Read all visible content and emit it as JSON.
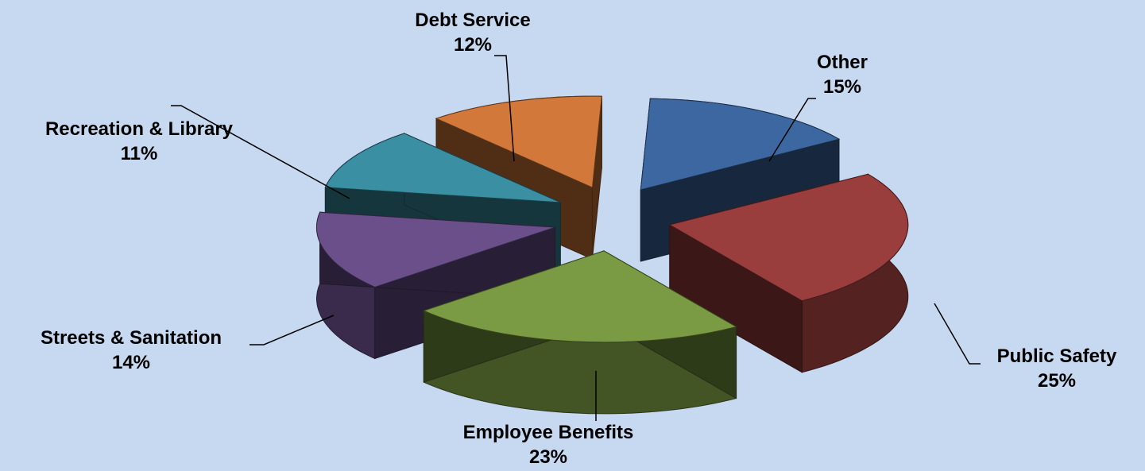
{
  "chart_data": {
    "type": "pie",
    "style": "3d-exploded",
    "slices": [
      {
        "name": "Other",
        "pct_label": "15%",
        "value": 15,
        "color": "#3d67a0"
      },
      {
        "name": "Public Safety",
        "pct_label": "25%",
        "value": 25,
        "color": "#9a3d3d"
      },
      {
        "name": "Employee Benefits",
        "pct_label": "23%",
        "value": 23,
        "color": "#7a9a43"
      },
      {
        "name": "Streets & Sanitation",
        "pct_label": "14%",
        "value": 14,
        "color": "#6a4f8b"
      },
      {
        "name": "Recreation & Library",
        "pct_label": "11%",
        "value": 11,
        "color": "#3a8fa3"
      },
      {
        "name": "Debt Service",
        "pct_label": "12%",
        "value": 12,
        "color": "#d2783a"
      }
    ]
  }
}
